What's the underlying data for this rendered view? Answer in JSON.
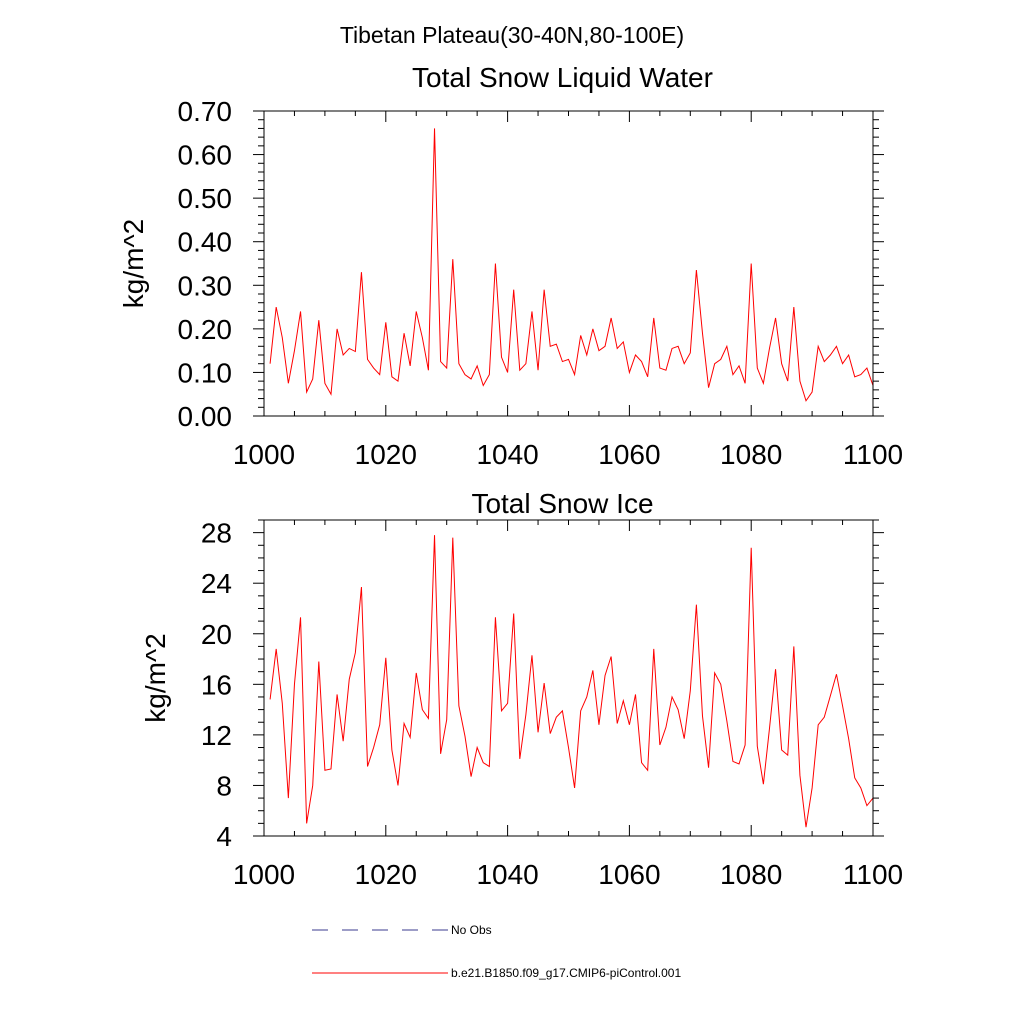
{
  "suptitle": "Tibetan Plateau(30-40N,80-100E)",
  "legend": {
    "obs_label": "No Obs",
    "obs_color": "#3b3b8f",
    "model_label": "b.e21.B1850.f09_g17.CMIP6-piControl.001",
    "model_color": "#ff0000"
  },
  "chart_data": [
    {
      "type": "line",
      "title": "Total Snow Liquid Water",
      "xlabel": "",
      "ylabel": "kg/m^2",
      "xlim": [
        1000,
        1100
      ],
      "ylim": [
        0,
        0.7
      ],
      "x_ticks": [
        1000,
        1020,
        1040,
        1060,
        1080,
        1100
      ],
      "x_tick_labels": [
        "1000",
        "1020",
        "1040",
        "1060",
        "1080",
        "1100"
      ],
      "y_ticks": [
        0,
        0.1,
        0.2,
        0.3,
        0.4,
        0.5,
        0.6,
        0.7
      ],
      "y_tick_labels": [
        "0.00",
        "0.10",
        "0.20",
        "0.30",
        "0.40",
        "0.50",
        "0.60",
        "0.70"
      ],
      "y_minor_step": 0.02,
      "x_start": 1001,
      "series": [
        {
          "name": "b.e21.B1850.f09_g17.CMIP6-piControl.001",
          "color": "#ff0000",
          "values": [
            0.12,
            0.25,
            0.18,
            0.075,
            0.15,
            0.24,
            0.055,
            0.085,
            0.22,
            0.075,
            0.05,
            0.2,
            0.14,
            0.155,
            0.148,
            0.33,
            0.13,
            0.11,
            0.095,
            0.215,
            0.09,
            0.08,
            0.19,
            0.115,
            0.24,
            0.18,
            0.105,
            0.66,
            0.125,
            0.11,
            0.36,
            0.12,
            0.095,
            0.085,
            0.115,
            0.07,
            0.095,
            0.35,
            0.135,
            0.1,
            0.29,
            0.105,
            0.12,
            0.24,
            0.105,
            0.29,
            0.16,
            0.165,
            0.125,
            0.13,
            0.095,
            0.185,
            0.14,
            0.2,
            0.15,
            0.16,
            0.225,
            0.155,
            0.17,
            0.1,
            0.14,
            0.125,
            0.09,
            0.225,
            0.11,
            0.105,
            0.155,
            0.16,
            0.12,
            0.145,
            0.335,
            0.19,
            0.065,
            0.12,
            0.13,
            0.16,
            0.095,
            0.115,
            0.075,
            0.35,
            0.11,
            0.075,
            0.155,
            0.225,
            0.12,
            0.08,
            0.25,
            0.08,
            0.035,
            0.055,
            0.16,
            0.125,
            0.14,
            0.16,
            0.12,
            0.14,
            0.09,
            0.095,
            0.11,
            0.07
          ]
        }
      ]
    },
    {
      "type": "line",
      "title": "Total Snow Ice",
      "xlabel": "",
      "ylabel": "kg/m^2",
      "xlim": [
        1000,
        1100
      ],
      "ylim": [
        4,
        29
      ],
      "x_ticks": [
        1000,
        1020,
        1040,
        1060,
        1080,
        1100
      ],
      "x_tick_labels": [
        "1000",
        "1020",
        "1040",
        "1060",
        "1080",
        "1100"
      ],
      "y_ticks": [
        4,
        8,
        12,
        16,
        20,
        24,
        28
      ],
      "y_tick_labels": [
        "4",
        "8",
        "12",
        "16",
        "20",
        "24",
        "28"
      ],
      "y_minor_step": 1,
      "x_start": 1001,
      "series": [
        {
          "name": "b.e21.B1850.f09_g17.CMIP6-piControl.001",
          "color": "#ff0000",
          "values": [
            14.8,
            18.8,
            14.5,
            7.0,
            16.0,
            21.3,
            5.0,
            8.0,
            17.8,
            9.2,
            9.3,
            15.2,
            11.5,
            16.4,
            18.5,
            23.7,
            9.5,
            11.0,
            12.8,
            18.1,
            10.8,
            8.0,
            12.9,
            11.8,
            16.9,
            14.0,
            13.3,
            27.8,
            10.5,
            13.2,
            27.6,
            14.3,
            11.9,
            8.7,
            11.0,
            9.8,
            9.5,
            21.3,
            13.9,
            14.5,
            21.6,
            10.1,
            13.6,
            18.3,
            12.2,
            16.1,
            12.1,
            13.4,
            13.9,
            11.0,
            7.8,
            13.9,
            15.0,
            17.1,
            12.8,
            16.7,
            18.2,
            12.9,
            14.7,
            12.8,
            15.2,
            9.8,
            9.2,
            18.8,
            11.2,
            12.6,
            15.0,
            14.0,
            11.7,
            15.5,
            22.3,
            13.5,
            9.4,
            16.9,
            16.0,
            13.1,
            9.9,
            9.7,
            11.2,
            26.8,
            11.1,
            8.1,
            12.5,
            17.2,
            10.8,
            10.4,
            19.0,
            8.8,
            4.7,
            7.8,
            12.8,
            13.4,
            15.1,
            16.8,
            14.3,
            11.7,
            8.6,
            7.8,
            6.4,
            7.0
          ]
        }
      ]
    }
  ]
}
